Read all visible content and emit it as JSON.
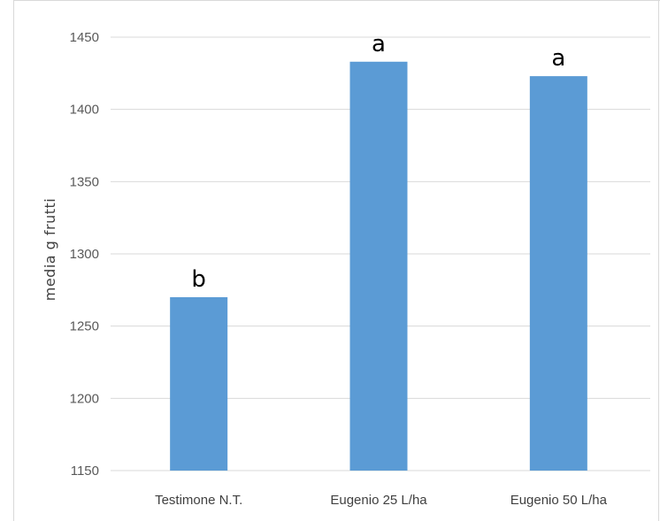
{
  "chart_data": {
    "type": "bar",
    "title": "",
    "xlabel": "",
    "ylabel": "media g frutti",
    "categories": [
      "Testimone N.T.",
      "Eugenio 25 L/ha",
      "Eugenio 50 L/ha"
    ],
    "values": [
      1270,
      1433,
      1423
    ],
    "significance_letters": [
      "b",
      "a",
      "a"
    ],
    "ylim": [
      1150,
      1450
    ],
    "yticks": [
      1150,
      1200,
      1250,
      1300,
      1350,
      1400,
      1450
    ],
    "grid": true,
    "legend": "none",
    "colors": {
      "bar": "#5b9bd5",
      "grid": "#d9d9d9",
      "text": "#595959"
    }
  }
}
